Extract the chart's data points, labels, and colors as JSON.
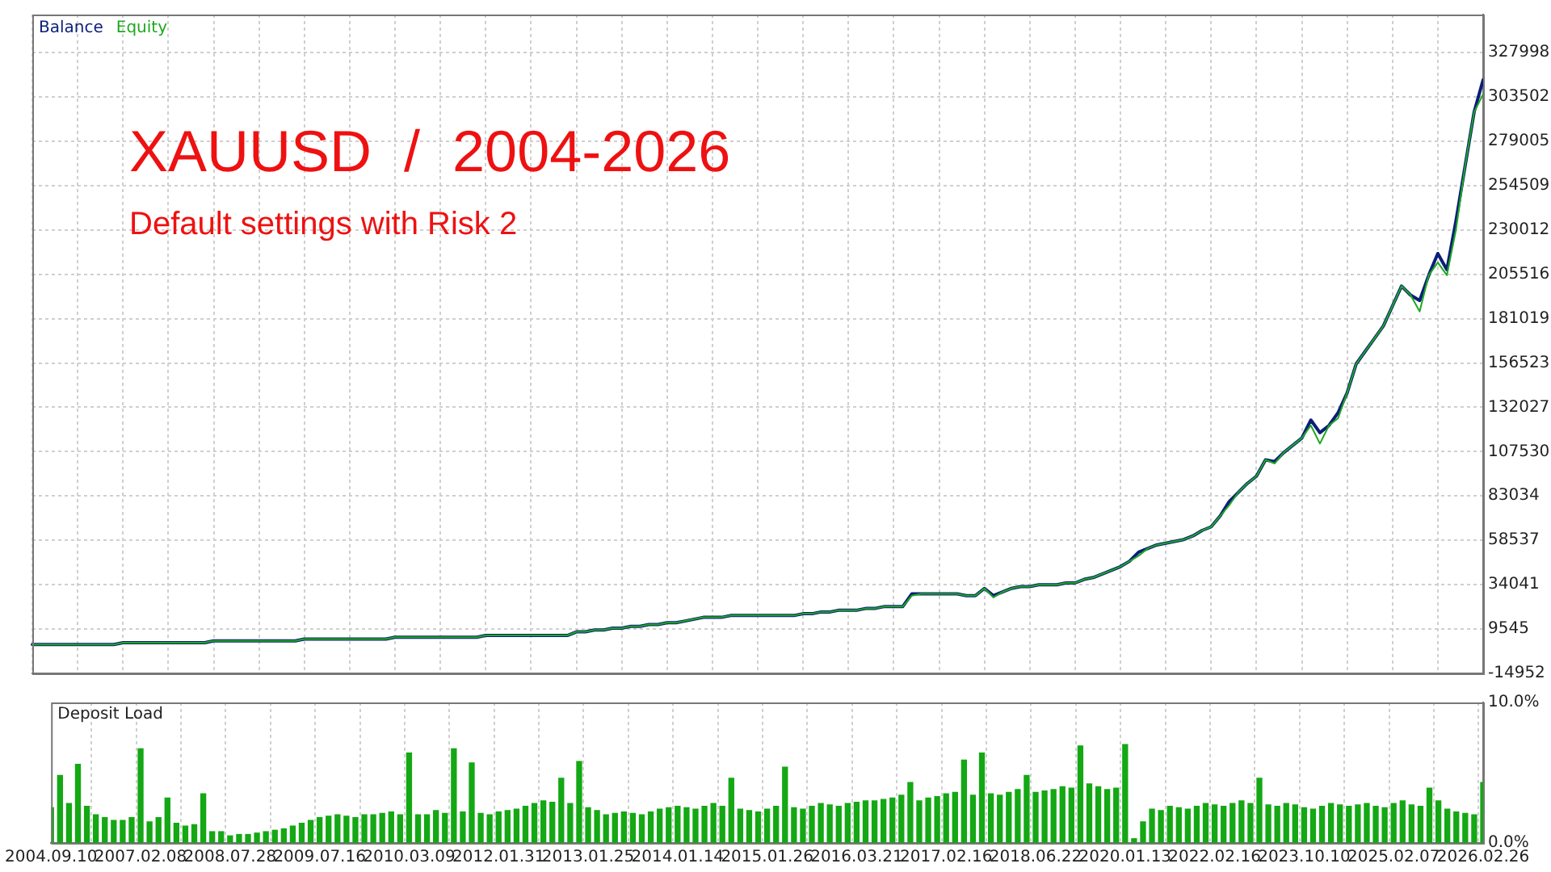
{
  "chart_data": [
    {
      "type": "line",
      "title": "XAUUSD  /  2004-2026",
      "subtitle": "Default settings with Risk 2",
      "legend": "top left",
      "grid": true,
      "tick_labels": "y",
      "categories": [
        null,
        null,
        null,
        null,
        null,
        null,
        null,
        null,
        null,
        null,
        null,
        null,
        null,
        null,
        null,
        null,
        null,
        null,
        null,
        null,
        null,
        null,
        null,
        null,
        null,
        null,
        null,
        null,
        null,
        null,
        null,
        null,
        null,
        null,
        null,
        null,
        null,
        null,
        null,
        null,
        null,
        null,
        null,
        null,
        null,
        null,
        null,
        null,
        null,
        null,
        null,
        null,
        null,
        null,
        null,
        null,
        null,
        null,
        null,
        null,
        null,
        null,
        null,
        null,
        null,
        null,
        null,
        null,
        null,
        null,
        null,
        null,
        null,
        null,
        null,
        null,
        null,
        null,
        null,
        null,
        null,
        null,
        null,
        null,
        null,
        null,
        null,
        null,
        null,
        null,
        null,
        null,
        null,
        null,
        null,
        null,
        null,
        null,
        null,
        null,
        null,
        null,
        null,
        null,
        null,
        null,
        null,
        null,
        null,
        null,
        null,
        null,
        null,
        null,
        null,
        null,
        null,
        null,
        null,
        null,
        null,
        null,
        null,
        null,
        null,
        null,
        null,
        null,
        null,
        null,
        null,
        null,
        null,
        null,
        null,
        null,
        null,
        null,
        null,
        null,
        null,
        null,
        null,
        null,
        null,
        null,
        null,
        null,
        null,
        null,
        null,
        null,
        null,
        null,
        null,
        null,
        null,
        null,
        null,
        null,
        null
      ],
      "series": [
        {
          "name": "Balance",
          "color": "#0a1f78",
          "values": [
            1000,
            1000,
            1000,
            1000,
            1000,
            1000,
            1000,
            1000,
            1000,
            1000,
            2000,
            2000,
            2000,
            2000,
            2000,
            2000,
            2000,
            2000,
            2000,
            2000,
            3000,
            3000,
            3000,
            3000,
            3000,
            3000,
            3000,
            3000,
            3000,
            3000,
            4000,
            4000,
            4000,
            4000,
            4000,
            4000,
            4000,
            4000,
            4000,
            4000,
            5000,
            5000,
            5000,
            5000,
            5000,
            5000,
            5000,
            5000,
            5000,
            5000,
            6000,
            6000,
            6000,
            6000,
            6000,
            6000,
            6000,
            6000,
            6000,
            6000,
            8000,
            8000,
            9000,
            9000,
            10000,
            10000,
            11000,
            11000,
            12000,
            12000,
            13000,
            13000,
            14000,
            15000,
            16000,
            16000,
            16000,
            17000,
            17000,
            17000,
            17000,
            17000,
            17000,
            17000,
            17000,
            18000,
            18000,
            19000,
            19000,
            20000,
            20000,
            20000,
            21000,
            21000,
            22000,
            22000,
            22000,
            29000,
            29000,
            29000,
            29000,
            29000,
            29000,
            28000,
            28000,
            32000,
            28000,
            30000,
            32000,
            33000,
            33000,
            34000,
            34000,
            34000,
            35000,
            35000,
            37000,
            38000,
            40000,
            42000,
            44000,
            47000,
            52000,
            54000,
            56000,
            57000,
            58000,
            59000,
            61000,
            64000,
            66000,
            72000,
            80000,
            85000,
            90000,
            94000,
            103000,
            102000,
            107000,
            111000,
            115000,
            125000,
            118000,
            122000,
            129000,
            140000,
            156000,
            163000,
            170000,
            177000,
            188000,
            199000,
            194000,
            191000,
            205000,
            217000,
            208000,
            235000,
            265000,
            295000,
            313000
          ]
        },
        {
          "name": "Equity",
          "color": "#1fa81f",
          "values": [
            1000,
            1000,
            1000,
            1000,
            1000,
            1000,
            1000,
            1000,
            1000,
            1000,
            2000,
            2000,
            2000,
            2000,
            2000,
            2000,
            2000,
            2000,
            2000,
            2000,
            3000,
            3000,
            3000,
            3000,
            3000,
            3000,
            3000,
            3000,
            3000,
            3000,
            4000,
            4000,
            4000,
            4000,
            4000,
            4000,
            4000,
            4000,
            4000,
            4000,
            5000,
            5000,
            5000,
            5000,
            5000,
            5000,
            5000,
            5000,
            5000,
            5000,
            6000,
            6000,
            6000,
            6000,
            6000,
            6000,
            6000,
            6000,
            6000,
            6000,
            8000,
            8000,
            9000,
            9000,
            10000,
            10000,
            11000,
            11000,
            12000,
            12000,
            13000,
            13000,
            14000,
            15000,
            16000,
            16000,
            16000,
            17000,
            17000,
            17000,
            17000,
            17000,
            17000,
            17000,
            17000,
            18000,
            18000,
            19000,
            19000,
            20000,
            20000,
            20000,
            21000,
            21000,
            22000,
            22000,
            22000,
            28000,
            29000,
            29000,
            29000,
            29000,
            29000,
            28000,
            28000,
            32000,
            27000,
            30000,
            32000,
            33000,
            33000,
            34000,
            34000,
            34000,
            35000,
            35000,
            37000,
            38000,
            40000,
            42000,
            44000,
            47000,
            50000,
            54000,
            56000,
            57000,
            58000,
            59000,
            61000,
            64000,
            66000,
            72000,
            78000,
            85000,
            90000,
            94000,
            103000,
            101000,
            107000,
            111000,
            115000,
            122000,
            112000,
            122000,
            126000,
            140000,
            156000,
            163000,
            170000,
            177000,
            188000,
            199000,
            194000,
            185000,
            205000,
            212000,
            205000,
            230000,
            265000,
            295000,
            305000
          ]
        }
      ],
      "ylim": [
        -14952,
        349000
      ],
      "yticks": [
        -14952,
        9545,
        34041,
        58537,
        83034,
        107530,
        132027,
        156523,
        181019,
        205516,
        230012,
        254509,
        279005,
        303502,
        327998
      ]
    },
    {
      "type": "bar",
      "title": "Deposit Load",
      "color": "#14a814",
      "grid": "x",
      "categories": [
        "2004.09.10",
        null,
        null,
        null,
        null,
        null,
        null,
        null,
        null,
        null,
        "2007.02.08",
        null,
        null,
        null,
        null,
        null,
        null,
        null,
        null,
        null,
        "2008.07.28",
        null,
        null,
        null,
        null,
        null,
        null,
        null,
        null,
        null,
        "2009.07.16",
        null,
        null,
        null,
        null,
        null,
        null,
        null,
        null,
        null,
        "2010.03.09",
        null,
        null,
        null,
        null,
        null,
        null,
        null,
        null,
        null,
        "2012.01.31",
        null,
        null,
        null,
        null,
        null,
        null,
        null,
        null,
        null,
        "2013.01.25",
        null,
        null,
        null,
        null,
        null,
        null,
        null,
        null,
        null,
        "2014.01.14",
        null,
        null,
        null,
        null,
        null,
        null,
        null,
        null,
        null,
        "2015.01.26",
        null,
        null,
        null,
        null,
        null,
        null,
        null,
        null,
        null,
        "2016.03.21",
        null,
        null,
        null,
        null,
        null,
        null,
        null,
        null,
        null,
        "2017.02.16",
        null,
        null,
        null,
        null,
        null,
        null,
        null,
        null,
        null,
        "2018.06.22",
        null,
        null,
        null,
        null,
        null,
        null,
        null,
        null,
        null,
        "2020.01.13",
        null,
        null,
        null,
        null,
        null,
        null,
        null,
        null,
        null,
        "2022.02.16",
        null,
        null,
        null,
        null,
        null,
        null,
        null,
        null,
        null,
        "2023.10.10",
        null,
        null,
        null,
        null,
        null,
        null,
        null,
        null,
        null,
        "2025.02.07",
        null,
        null,
        null,
        null,
        null,
        null,
        null,
        null,
        null,
        "2026.02.26"
      ],
      "values": [
        2.5,
        4.8,
        2.8,
        5.6,
        2.6,
        2.0,
        1.8,
        1.6,
        1.6,
        1.8,
        6.7,
        1.5,
        1.8,
        3.2,
        1.4,
        1.2,
        1.3,
        3.5,
        0.8,
        0.8,
        0.5,
        0.6,
        0.6,
        0.7,
        0.8,
        0.9,
        1.0,
        1.2,
        1.4,
        1.6,
        1.8,
        1.9,
        2.0,
        1.9,
        1.8,
        2.0,
        2.0,
        2.1,
        2.2,
        2.0,
        6.4,
        2.0,
        2.0,
        2.3,
        2.1,
        6.7,
        2.2,
        5.7,
        2.1,
        2.0,
        2.2,
        2.3,
        2.4,
        2.6,
        2.8,
        3.0,
        2.9,
        4.6,
        2.8,
        5.8,
        2.5,
        2.3,
        2.0,
        2.1,
        2.2,
        2.1,
        2.0,
        2.2,
        2.4,
        2.5,
        2.6,
        2.5,
        2.4,
        2.6,
        2.8,
        2.6,
        4.6,
        2.4,
        2.3,
        2.2,
        2.4,
        2.6,
        5.4,
        2.5,
        2.4,
        2.6,
        2.8,
        2.7,
        2.6,
        2.8,
        2.9,
        3.0,
        3.0,
        3.1,
        3.2,
        3.4,
        4.3,
        3.0,
        3.2,
        3.3,
        3.5,
        3.6,
        5.9,
        3.4,
        6.4,
        3.5,
        3.4,
        3.6,
        3.8,
        4.8,
        3.6,
        3.7,
        3.8,
        4.0,
        3.9,
        6.9,
        4.2,
        4.0,
        3.8,
        3.9,
        7.0,
        0.3,
        1.5,
        2.4,
        2.3,
        2.6,
        2.5,
        2.4,
        2.6,
        2.8,
        2.7,
        2.6,
        2.8,
        3.0,
        2.8,
        4.6,
        2.7,
        2.6,
        2.8,
        2.7,
        2.5,
        2.4,
        2.6,
        2.8,
        2.7,
        2.6,
        2.7,
        2.8,
        2.6,
        2.5,
        2.8,
        3.0,
        2.7,
        2.6,
        3.9,
        3.0,
        2.4,
        2.2,
        2.1,
        2.0,
        4.3
      ],
      "ylim": [
        0,
        10
      ],
      "yticks": [
        {
          "value": 0,
          "label": "0.0%"
        },
        {
          "value": 10,
          "label": "10.0%"
        }
      ]
    }
  ]
}
